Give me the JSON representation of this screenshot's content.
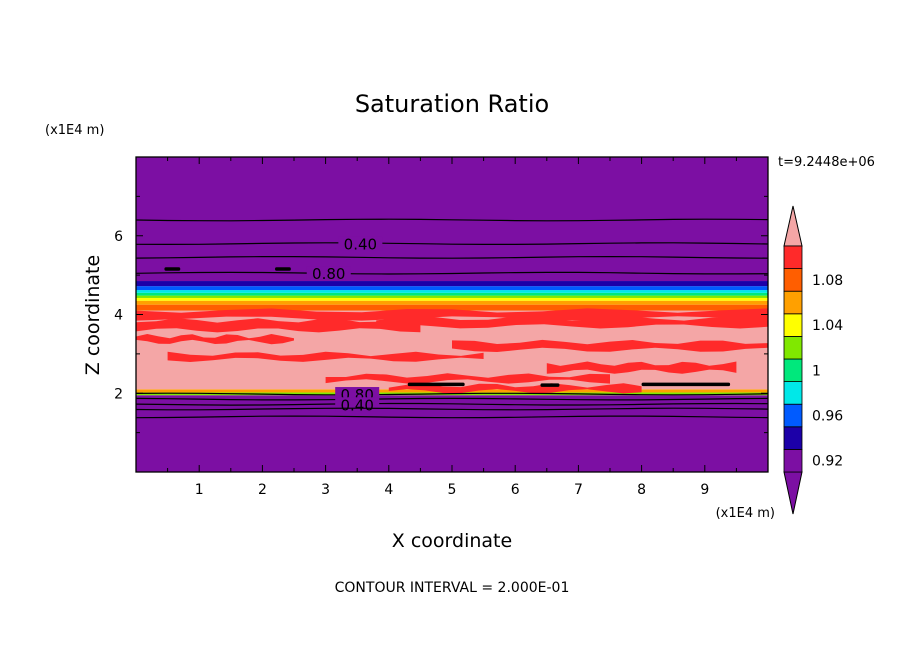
{
  "chart_data": {
    "type": "heatmap",
    "title": "Saturation Ratio",
    "xlabel": "X coordinate",
    "ylabel": "Z coordinate",
    "x_unit": "(x1E4 m)",
    "y_unit": "(x1E4 m)",
    "time_label": "t=9.2448e+06",
    "footer": "CONTOUR INTERVAL = 2.000E-01",
    "xlim": [
      0,
      10
    ],
    "ylim": [
      0,
      8
    ],
    "x_ticks": [
      {
        "value": 1,
        "label": "1"
      },
      {
        "value": 2,
        "label": "2"
      },
      {
        "value": 3,
        "label": "3"
      },
      {
        "value": 4,
        "label": "4"
      },
      {
        "value": 5,
        "label": "5"
      },
      {
        "value": 6,
        "label": "6"
      },
      {
        "value": 7,
        "label": "7"
      },
      {
        "value": 8,
        "label": "8"
      },
      {
        "value": 9,
        "label": "9"
      }
    ],
    "y_ticks": [
      {
        "value": 2,
        "label": "2"
      },
      {
        "value": 4,
        "label": "4"
      },
      {
        "value": 6,
        "label": "6"
      }
    ],
    "colorbar": {
      "levels": [
        {
          "value": 0.92,
          "color": "#7c0fa3"
        },
        {
          "value": 0.94,
          "color": "#1c00a8"
        },
        {
          "value": 0.96,
          "color": "#005bff"
        },
        {
          "value": 0.98,
          "color": "#00e8e8"
        },
        {
          "value": 1.0,
          "color": "#00e87c"
        },
        {
          "value": 1.02,
          "color": "#80e800"
        },
        {
          "value": 1.04,
          "color": "#ffff00"
        },
        {
          "value": 1.06,
          "color": "#ffa000"
        },
        {
          "value": 1.08,
          "color": "#ff5e00"
        },
        {
          "value": 1.1,
          "color": "#ff2a2a"
        }
      ],
      "low_color": "#7c0fa3",
      "high_color": "#f4a6a6",
      "labels": [
        {
          "value": 0.92,
          "label": "0.92"
        },
        {
          "value": 0.96,
          "label": "0.96"
        },
        {
          "value": 1.0,
          "label": "1"
        },
        {
          "value": 1.04,
          "label": "1.04"
        },
        {
          "value": 1.08,
          "label": "1.08"
        }
      ]
    },
    "bands": [
      {
        "z0": 0.0,
        "z1": 1.95,
        "color": "#7c0fa3"
      },
      {
        "z0": 1.95,
        "z1": 2.02,
        "color": "#80e800"
      },
      {
        "z0": 2.02,
        "z1": 2.1,
        "color": "#ffa000"
      },
      {
        "z0": 2.1,
        "z1": 4.1,
        "color": "#f4a6a6"
      },
      {
        "z0": 4.1,
        "z1": 4.25,
        "color": "#ff5e00"
      },
      {
        "z0": 4.25,
        "z1": 4.35,
        "color": "#ffa000"
      },
      {
        "z0": 4.35,
        "z1": 4.42,
        "color": "#ffff00"
      },
      {
        "z0": 4.42,
        "z1": 4.48,
        "color": "#80e800"
      },
      {
        "z0": 4.48,
        "z1": 4.55,
        "color": "#00e87c"
      },
      {
        "z0": 4.55,
        "z1": 4.62,
        "color": "#00e8e8"
      },
      {
        "z0": 4.62,
        "z1": 4.72,
        "color": "#005bff"
      },
      {
        "z0": 4.72,
        "z1": 4.85,
        "color": "#1c00a8"
      },
      {
        "z0": 4.85,
        "z1": 8.0,
        "color": "#7c0fa3"
      }
    ],
    "red_streaks": [
      {
        "x0": 0.0,
        "x1": 10.0,
        "z0": 3.9,
        "z1": 4.1
      },
      {
        "x0": 0.0,
        "x1": 4.5,
        "z0": 3.6,
        "z1": 3.85
      },
      {
        "x0": 3.8,
        "x1": 10.0,
        "z0": 3.7,
        "z1": 3.9
      },
      {
        "x0": 0.0,
        "x1": 2.5,
        "z0": 3.3,
        "z1": 3.45
      },
      {
        "x0": 5.0,
        "x1": 10.0,
        "z0": 3.1,
        "z1": 3.3
      },
      {
        "x0": 0.5,
        "x1": 5.5,
        "z0": 2.85,
        "z1": 3.0
      },
      {
        "x0": 6.5,
        "x1": 9.5,
        "z0": 2.55,
        "z1": 2.75
      },
      {
        "x0": 3.0,
        "x1": 7.5,
        "z0": 2.3,
        "z1": 2.45
      },
      {
        "x0": 4.0,
        "x1": 8.0,
        "z0": 2.05,
        "z1": 2.2
      }
    ],
    "contours": [
      {
        "z": 6.4,
        "label": ""
      },
      {
        "z": 5.8,
        "label": "0.40"
      },
      {
        "z": 5.45,
        "label": ""
      },
      {
        "z": 5.05,
        "label": "0.80"
      },
      {
        "z": 1.98,
        "label": "0.80"
      },
      {
        "z": 1.85,
        "label": ""
      },
      {
        "z": 1.72,
        "label": "0.40"
      },
      {
        "z": 1.6,
        "label": ""
      },
      {
        "z": 1.4,
        "label": ""
      }
    ],
    "upper_label_x": [
      3.55,
      3.05
    ],
    "lower_label_x": [
      3.5,
      3.5
    ],
    "dark_specks": [
      {
        "x0": 4.3,
        "x1": 5.2,
        "z": 2.22
      },
      {
        "x0": 8.0,
        "x1": 9.4,
        "z": 2.22
      },
      {
        "x0": 6.4,
        "x1": 6.7,
        "z": 2.2
      },
      {
        "x0": 2.2,
        "x1": 2.45,
        "z": 5.15
      },
      {
        "x0": 0.45,
        "x1": 0.7,
        "z": 5.15
      }
    ]
  }
}
